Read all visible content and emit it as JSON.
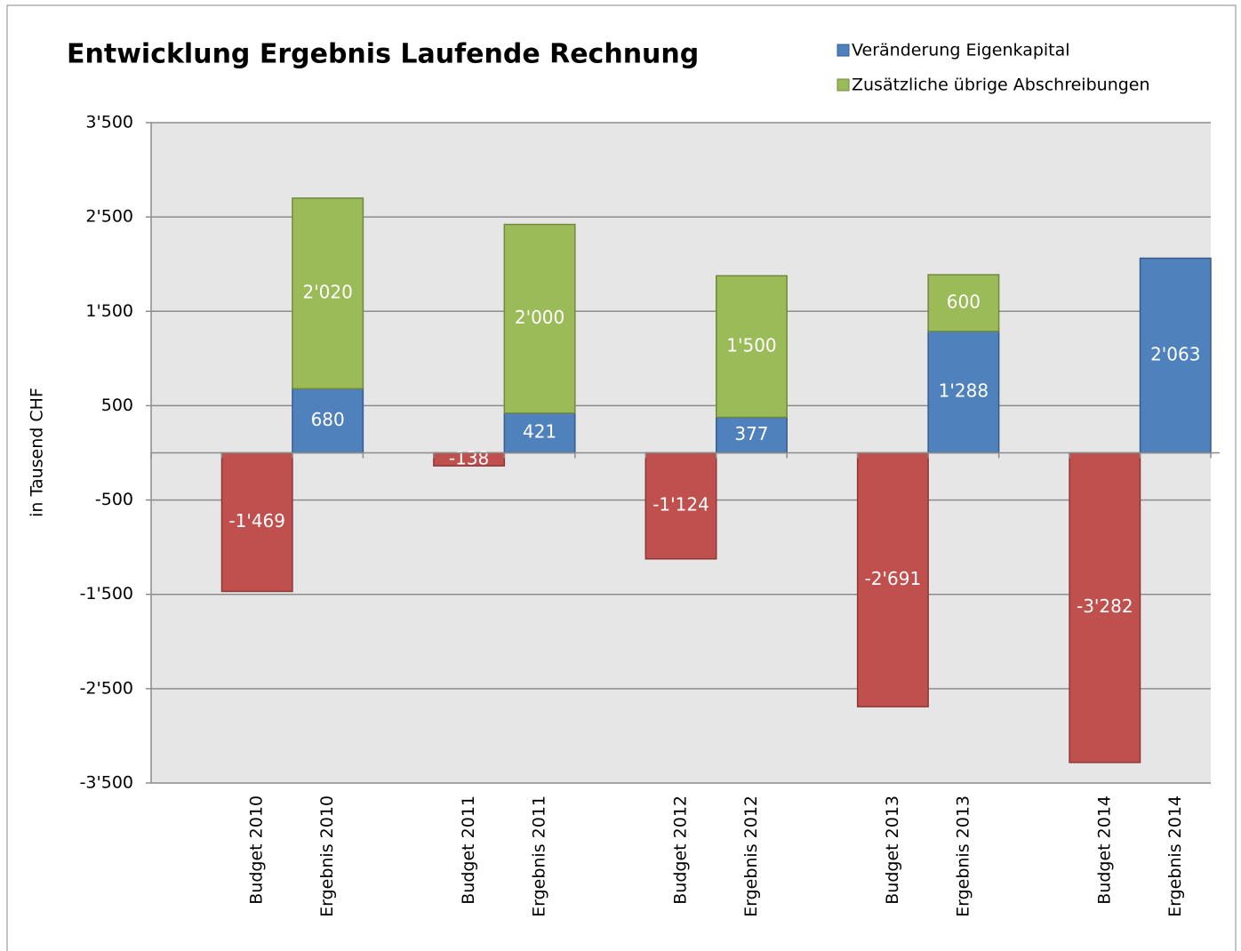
{
  "chart_data": {
    "type": "bar",
    "stacked": true,
    "title": "Entwicklung Ergebnis Laufende Rechnung",
    "y_label": "in Tausend CHF",
    "categories": [
      null,
      "Budget 2010",
      "Ergebnis 2010",
      null,
      "Budget 2011",
      "Ergebnis 2011",
      null,
      "Budget 2012",
      "Ergebnis 2012",
      null,
      "Budget 2013",
      "Ergebnis 2013",
      null,
      "Budget 2014",
      "Ergebnis 2014"
    ],
    "series": [
      {
        "color": "#c0504d",
        "border": "#8c3836",
        "values": [
          null,
          -1469,
          null,
          null,
          -138,
          null,
          null,
          -1124,
          null,
          null,
          -2691,
          null,
          null,
          -3282,
          null
        ],
        "value_labels": [
          null,
          "-1'469",
          null,
          null,
          "-138",
          null,
          null,
          "-1'124",
          null,
          null,
          "-2'691",
          null,
          null,
          "-3'282",
          null
        ]
      },
      {
        "name": "Veränderung Eigenkapital",
        "color": "#4f81bd",
        "border": "#385d8a",
        "values": [
          null,
          null,
          680,
          null,
          null,
          421,
          null,
          null,
          377,
          null,
          null,
          1288,
          null,
          null,
          2063
        ],
        "value_labels": [
          null,
          null,
          "680",
          null,
          null,
          "421",
          null,
          null,
          "377",
          null,
          null,
          "1'288",
          null,
          null,
          "2'063"
        ]
      },
      {
        "name": "Zusätzliche übrige Abschreibungen",
        "color": "#9bbb59",
        "border": "#71893f",
        "values": [
          null,
          null,
          2020,
          null,
          null,
          2000,
          null,
          null,
          1500,
          null,
          null,
          600,
          null,
          null,
          null
        ],
        "value_labels": [
          null,
          null,
          "2'020",
          null,
          null,
          "2'000",
          null,
          null,
          "1'500",
          null,
          null,
          "600",
          null,
          null,
          null
        ]
      }
    ],
    "ylim": [
      -3500,
      3500
    ],
    "yticks": [
      {
        "value": 3500,
        "label": "3'500"
      },
      {
        "value": 2500,
        "label": "2'500"
      },
      {
        "value": 1500,
        "label": "1'500"
      },
      500,
      -500,
      {
        "value": -1500,
        "label": "-1'500"
      },
      {
        "value": -2500,
        "label": "-2'500"
      },
      {
        "value": -3500,
        "label": "-3'500"
      }
    ],
    "grid": true,
    "legend": "top-right"
  }
}
